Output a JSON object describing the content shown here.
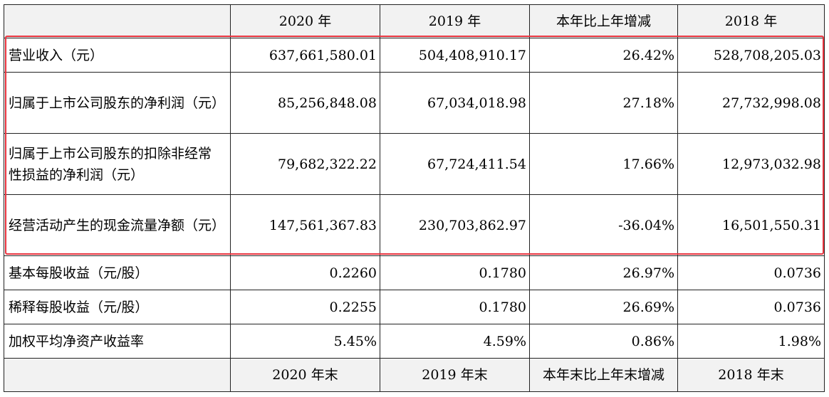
{
  "header": [
    "",
    "2020 年",
    "2019 年",
    "本年比上年增减",
    "2018 年"
  ],
  "rows": [
    {
      "label": "营业收入（元）",
      "v2020": "637,661,580.01",
      "v2019": "504,408,910.17",
      "change": "26.42%",
      "v2018": "528,708,205.03"
    },
    {
      "label": "归属于上市公司股东的净利润（元）",
      "v2020": "85,256,848.08",
      "v2019": "67,034,018.98",
      "change": "27.18%",
      "v2018": "27,732,998.08"
    },
    {
      "label": "归属于上市公司股东的扣除非经常性损益的净利润（元）",
      "v2020": "79,682,322.22",
      "v2019": "67,724,411.54",
      "change": "17.66%",
      "v2018": "12,973,032.98"
    },
    {
      "label": "经营活动产生的现金流量净额（元）",
      "v2020": "147,561,367.83",
      "v2019": "230,703,862.97",
      "change": "-36.04%",
      "v2018": "16,501,550.31"
    },
    {
      "label": "基本每股收益（元/股）",
      "v2020": "0.2260",
      "v2019": "0.1780",
      "change": "26.97%",
      "v2018": "0.0736"
    },
    {
      "label": "稀释每股收益（元/股）",
      "v2020": "0.2255",
      "v2019": "0.1780",
      "change": "26.69%",
      "v2018": "0.0736"
    },
    {
      "label": "加权平均净资产收益率",
      "v2020": "5.45%",
      "v2019": "4.59%",
      "change": "0.86%",
      "v2018": "1.98%"
    }
  ],
  "footer": [
    "",
    "2020 年末",
    "2019 年末",
    "本年末比上年末增减",
    "2018 年末"
  ],
  "colors": {
    "highlight": "#e8343f",
    "header_bg": "#f2f2f2"
  }
}
